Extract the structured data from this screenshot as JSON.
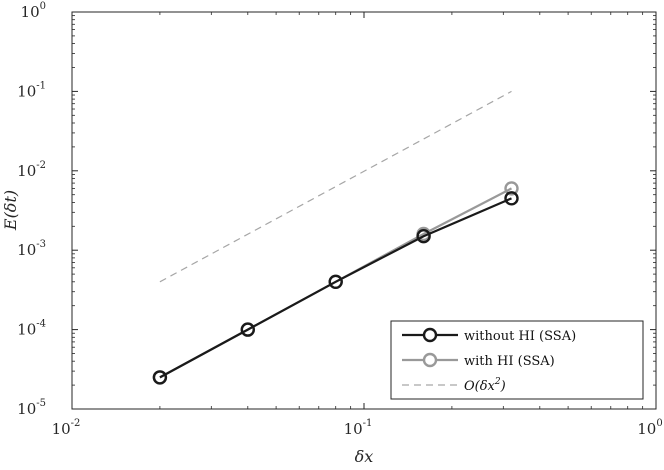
{
  "chart_data": {
    "type": "line",
    "xlabel": "δx",
    "ylabel": "E(δt)",
    "x_scale": "log",
    "y_scale": "log",
    "xlim": [
      0.01,
      1
    ],
    "ylim": [
      1e-05,
      1
    ],
    "grid": false,
    "legend_position": "bottom-right",
    "x_ticks": [
      {
        "value": 0.01,
        "base": "10",
        "exp": "-2"
      },
      {
        "value": 0.1,
        "base": "10",
        "exp": "-1"
      },
      {
        "value": 1,
        "base": "10",
        "exp": "0"
      }
    ],
    "y_ticks": [
      {
        "value": 1e-05,
        "base": "10",
        "exp": "-5"
      },
      {
        "value": 0.0001,
        "base": "10",
        "exp": "-4"
      },
      {
        "value": 0.001,
        "base": "10",
        "exp": "-3"
      },
      {
        "value": 0.01,
        "base": "10",
        "exp": "-2"
      },
      {
        "value": 0.1,
        "base": "10",
        "exp": "-1"
      },
      {
        "value": 1,
        "base": "10",
        "exp": "0"
      }
    ],
    "series": [
      {
        "name": "without HI (SSA)",
        "color": "#1a1a1a",
        "style": "solid",
        "marker": "circle",
        "x": [
          0.02,
          0.04,
          0.08,
          0.16,
          0.32
        ],
        "y": [
          2.5e-05,
          0.0001,
          0.0004,
          0.0015,
          0.0045
        ]
      },
      {
        "name": "with HI (SSA)",
        "color": "#999999",
        "style": "solid",
        "marker": "circle",
        "x": [
          0.02,
          0.04,
          0.08,
          0.16,
          0.32
        ],
        "y": [
          2.5e-05,
          0.0001,
          0.0004,
          0.0016,
          0.006
        ]
      },
      {
        "name": "O(δx²)",
        "color": "#a6a6a6",
        "style": "dashed",
        "marker": "none",
        "x": [
          0.02,
          0.32
        ],
        "y": [
          0.0004,
          0.1
        ]
      }
    ],
    "legend_entries": [
      {
        "label": "without HI (SSA)"
      },
      {
        "label": "with HI (SSA)"
      },
      {
        "label_main": "O(δx",
        "label_sup": "2",
        "label_end": ")"
      }
    ]
  }
}
